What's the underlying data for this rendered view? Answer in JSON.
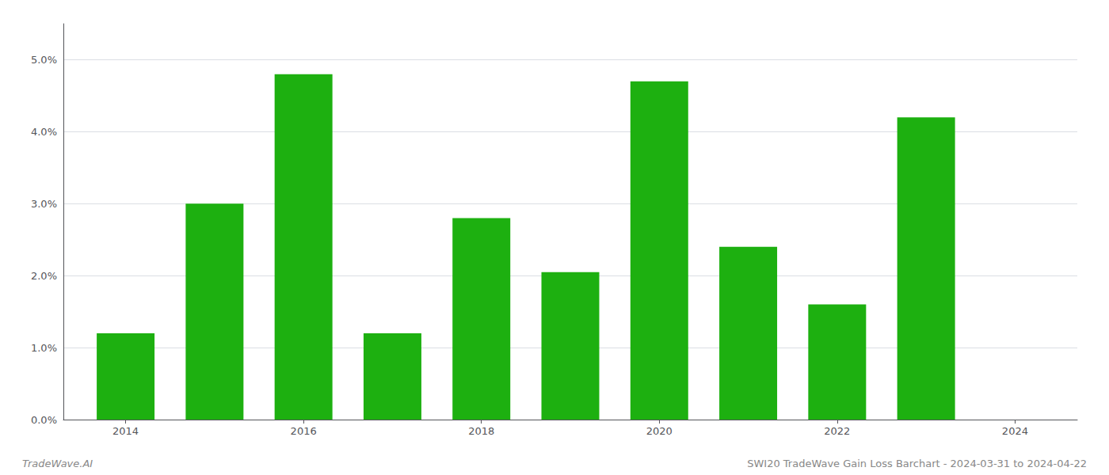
{
  "chart_data": {
    "type": "bar",
    "x": [
      2014,
      2015,
      2016,
      2017,
      2018,
      2019,
      2020,
      2021,
      2022,
      2023
    ],
    "values": [
      0.012,
      0.03,
      0.048,
      0.012,
      0.028,
      0.0205,
      0.047,
      0.024,
      0.016,
      0.042
    ],
    "color": "#1db010",
    "xlim": [
      2013.3,
      2024.7
    ],
    "xticks": [
      2014,
      2016,
      2018,
      2020,
      2022,
      2024
    ],
    "ylim": [
      0,
      0.055
    ],
    "yticks": [
      {
        "value": 0.0,
        "label": "0.0%"
      },
      {
        "value": 0.01,
        "label": "1.0%"
      },
      {
        "value": 0.02,
        "label": "2.0%"
      },
      {
        "value": 0.03,
        "label": "3.0%"
      },
      {
        "value": 0.04,
        "label": "4.0%"
      },
      {
        "value": 0.05,
        "label": "5.0%"
      }
    ],
    "grid": true,
    "annotations": [
      "TradeWave.AI",
      "SWI20 TradeWave Gain Loss Barchart - 2024-03-31 to 2024-04-22"
    ]
  }
}
